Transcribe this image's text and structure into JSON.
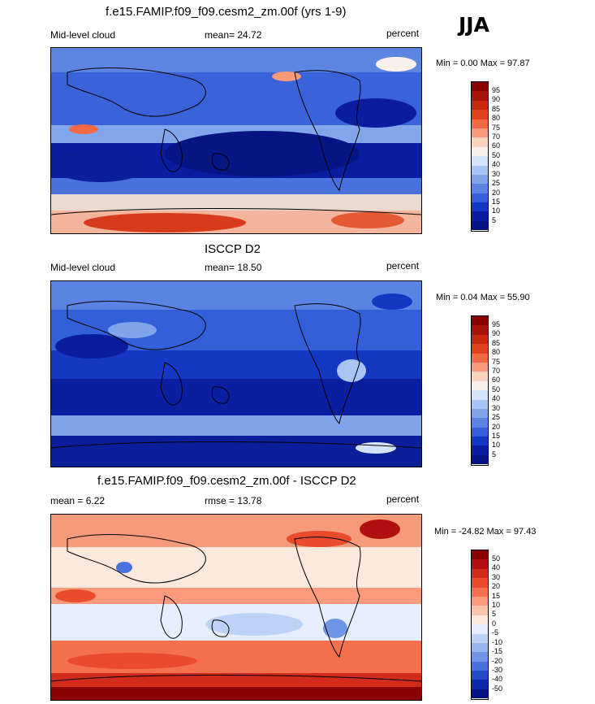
{
  "season": "JJA",
  "panels": [
    {
      "title": "f.e15.FAMIP.f09_f09.cesm2_zm.00f (yrs 1-9)",
      "left_label": "Mid-level cloud",
      "center_label": "mean=  24.72",
      "right_label": "percent",
      "minmax": "Min =   0.00 Max =  97.87",
      "levels": [
        "95",
        "90",
        "85",
        "80",
        "75",
        "70",
        "60",
        "50",
        "40",
        "30",
        "25",
        "20",
        "15",
        "10",
        "5"
      ]
    },
    {
      "title": "ISCCP D2",
      "left_label": "Mid-level cloud",
      "center_label": "mean=  18.50",
      "right_label": "percent",
      "minmax": "Min =   0.04 Max =  55.90",
      "levels": [
        "95",
        "90",
        "85",
        "80",
        "75",
        "70",
        "60",
        "50",
        "40",
        "30",
        "25",
        "20",
        "15",
        "10",
        "5"
      ]
    },
    {
      "title": "f.e15.FAMIP.f09_f09.cesm2_zm.00f - ISCCP D2",
      "left_label": "mean =   6.22",
      "center_label": "rmse =  13.78",
      "right_label": "percent",
      "minmax": "Min = -24.82 Max =  97.43",
      "levels": [
        "50",
        "40",
        "30",
        "20",
        "15",
        "10",
        "5",
        "0",
        "-5",
        "-10",
        "-15",
        "-20",
        "-30",
        "-40",
        "-50"
      ]
    }
  ],
  "colors": {
    "seq": [
      "#8b0000",
      "#a71409",
      "#c8280f",
      "#e0401e",
      "#f06a46",
      "#f79a7a",
      "#fcd3bd",
      "#f8f0ea",
      "#d3e3fa",
      "#a7c4f2",
      "#7fa4ea",
      "#5a84e4",
      "#3360d8",
      "#1538c4",
      "#0a1ea0",
      "#071484"
    ],
    "diff": [
      "#8b0000",
      "#b01010",
      "#d22b1b",
      "#ea4b2c",
      "#f5704d",
      "#fb9b7c",
      "#fcc4ac",
      "#fde8dc",
      "#e6eefb",
      "#bdd2f6",
      "#96b5ef",
      "#6f95e6",
      "#4a72dd",
      "#2549cc",
      "#0c2aa8",
      "#071484"
    ]
  }
}
